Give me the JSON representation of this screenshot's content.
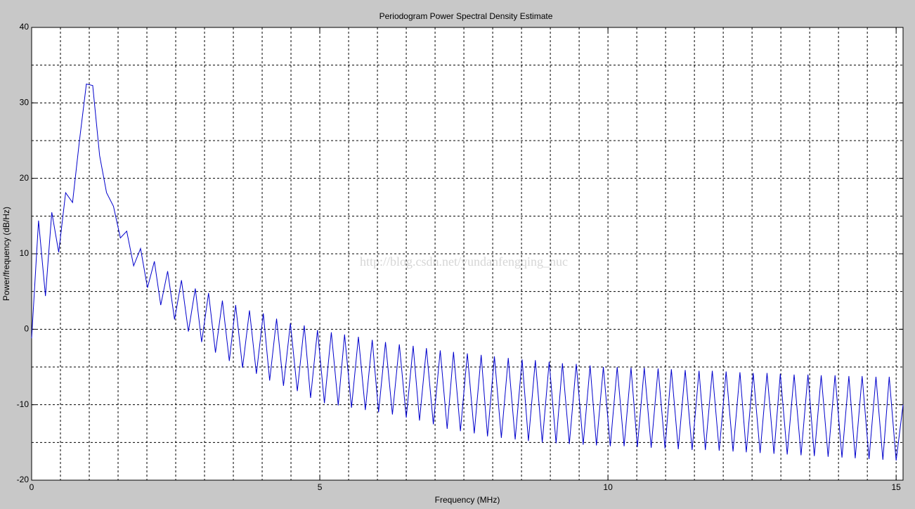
{
  "chart_data": {
    "type": "line",
    "title": "Periodogram Power Spectral Density Estimate",
    "xlabel": "Frequency (MHz)",
    "ylabel": "Power/frequency (dB/Hz)",
    "watermark": "http://blog.csdn.net/yundanfengqing_nuc",
    "xlim": [
      0,
      15.12
    ],
    "ylim": [
      -20,
      40
    ],
    "xticks": [
      0,
      5,
      10,
      15
    ],
    "yticks": [
      -20,
      -10,
      0,
      10,
      20,
      30,
      40
    ],
    "xgrid": [
      0,
      0.5,
      1,
      1.5,
      2,
      2.5,
      3,
      3.5,
      4,
      4.5,
      5,
      5.5,
      6,
      6.5,
      7,
      7.5,
      8,
      8.5,
      9,
      9.5,
      10,
      10.5,
      11,
      11.5,
      12,
      12.5,
      13,
      13.5,
      14,
      14.5,
      15
    ],
    "ygrid": [
      -20,
      -15,
      -10,
      -5,
      0,
      5,
      10,
      15,
      20,
      25,
      30,
      35,
      40
    ],
    "grid": true,
    "x": [
      0,
      0.12,
      0.24,
      0.35,
      0.47,
      0.59,
      0.71,
      0.83,
      0.95,
      1.06,
      1.18,
      1.3,
      1.42,
      1.54,
      1.65,
      1.77,
      1.89,
      2.01,
      2.13,
      2.24,
      2.36,
      2.48,
      2.6,
      2.72,
      2.84,
      2.95,
      3.07,
      3.19,
      3.31,
      3.43,
      3.54,
      3.66,
      3.78,
      3.9,
      4.02,
      4.13,
      4.25,
      4.37,
      4.49,
      4.61,
      4.73,
      4.84,
      4.96,
      5.08,
      5.2,
      5.32,
      5.43,
      5.55,
      5.67,
      5.79,
      5.91,
      6.02,
      6.14,
      6.26,
      6.38,
      6.5,
      6.62,
      6.73,
      6.85,
      6.97,
      7.09,
      7.21,
      7.32,
      7.44,
      7.56,
      7.68,
      7.8,
      7.91,
      8.03,
      8.15,
      8.27,
      8.39,
      8.51,
      8.62,
      8.74,
      8.86,
      8.98,
      9.1,
      9.21,
      9.33,
      9.45,
      9.57,
      9.69,
      9.8,
      9.92,
      10.04,
      10.16,
      10.28,
      10.4,
      10.51,
      10.63,
      10.75,
      10.87,
      10.99,
      11.1,
      11.22,
      11.34,
      11.46,
      11.58,
      11.69,
      11.81,
      11.93,
      12.05,
      12.17,
      12.29,
      12.4,
      12.52,
      12.64,
      12.76,
      12.88,
      12.99,
      13.11,
      13.23,
      13.35,
      13.47,
      13.58,
      13.7,
      13.82,
      13.94,
      14.06,
      14.18,
      14.29,
      14.41,
      14.53,
      14.65,
      14.77,
      14.88,
      15.0,
      15.12
    ],
    "series": [
      {
        "color": "#0000cc",
        "values": [
          -1.2,
          14.4,
          4.4,
          15.5,
          10.2,
          18.1,
          16.8,
          25,
          32.5,
          32.3,
          23,
          18.1,
          16.3,
          12.1,
          13,
          8.4,
          10.7,
          5.5,
          9,
          3.2,
          7.7,
          1.3,
          6.5,
          -0.3,
          5.4,
          -1.7,
          4.8,
          -3.1,
          3.8,
          -4.2,
          3.2,
          -5.1,
          2.5,
          -5.9,
          2.1,
          -6.8,
          1.4,
          -7.5,
          0.8,
          -8.2,
          0.5,
          -9.1,
          -0.1,
          -9.8,
          -0.4,
          -10.1,
          -0.7,
          -10.4,
          -1.0,
          -10.7,
          -1.4,
          -11.0,
          -1.7,
          -11.3,
          -2.0,
          -11.7,
          -2.2,
          -12.1,
          -2.5,
          -12.6,
          -2.8,
          -13.2,
          -3.0,
          -13.5,
          -3.2,
          -13.8,
          -3.4,
          -14.2,
          -3.6,
          -14.4,
          -3.8,
          -14.6,
          -4.0,
          -14.8,
          -4.1,
          -15.0,
          -4.3,
          -15.1,
          -4.5,
          -15.2,
          -4.6,
          -15.3,
          -4.8,
          -15.4,
          -5.0,
          -15.5,
          -5.0,
          -15.5,
          -5.1,
          -15.6,
          -5.1,
          -15.7,
          -5.2,
          -15.8,
          -5.3,
          -15.9,
          -5.4,
          -16.0,
          -5.5,
          -16.0,
          -5.5,
          -16.1,
          -5.6,
          -16.2,
          -5.7,
          -16.3,
          -5.8,
          -16.4,
          -5.8,
          -16.5,
          -5.9,
          -16.6,
          -6.0,
          -16.7,
          -6.0,
          -16.8,
          -6.1,
          -16.9,
          -6.1,
          -17.0,
          -6.2,
          -17.1,
          -6.2,
          -17.2,
          -6.3,
          -17.3,
          -6.3,
          -17.4,
          -10.0
        ]
      }
    ]
  }
}
